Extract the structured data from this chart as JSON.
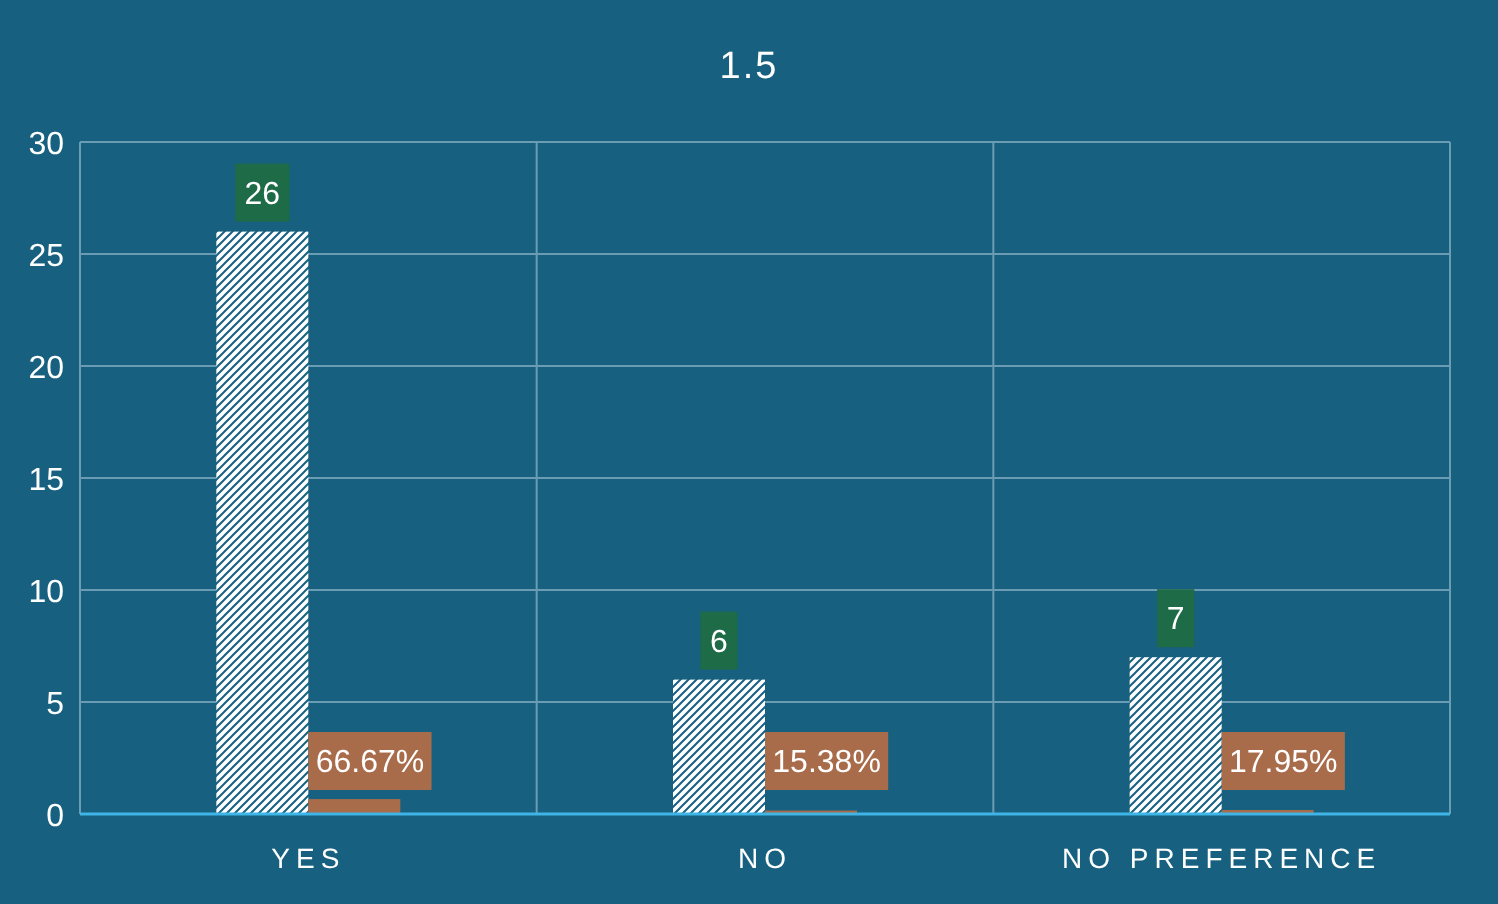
{
  "chart_data": {
    "type": "bar",
    "title": "1.5",
    "categories": [
      "YES",
      "NO",
      "NO PREFERENCE"
    ],
    "series": [
      {
        "color": "#ffffff",
        "values": [
          26,
          6,
          7
        ],
        "value_labels": [
          "26",
          "6",
          "7"
        ]
      },
      {
        "color": "#a86c4b",
        "values": [
          0.6667,
          0.1538,
          0.1795
        ],
        "value_labels": [
          "66.67%",
          "15.38%",
          "17.95%"
        ]
      }
    ],
    "ylim": [
      0,
      30
    ],
    "yticks": [
      0,
      5,
      10,
      15,
      20,
      25,
      30
    ],
    "grid": true
  }
}
